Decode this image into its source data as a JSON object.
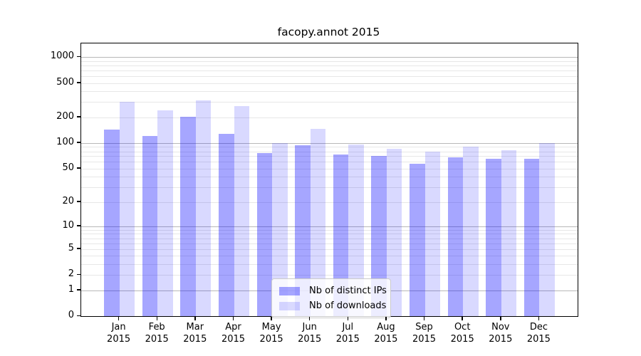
{
  "title": "facopy.annot 2015",
  "legend": {
    "items": [
      {
        "label": "Nb of distinct IPs",
        "color": "rgba(0,0,255,0.35)"
      },
      {
        "label": "Nb of downloads",
        "color": "rgba(0,0,255,0.15)"
      }
    ]
  },
  "colors": {
    "bar_dark": "rgba(0,0,255,0.35)",
    "bar_light": "rgba(0,0,255,0.15)",
    "grid_major": "#b8b8b8",
    "grid_minor": "#e7e7e7",
    "spine": "#000000",
    "legend_border": "#cccccc"
  },
  "chart_data": {
    "type": "bar",
    "title": "facopy.annot 2015",
    "categories": [
      "Jan",
      "Feb",
      "Mar",
      "Apr",
      "May",
      "Jun",
      "Jul",
      "Aug",
      "Sep",
      "Oct",
      "Nov",
      "Dec"
    ],
    "x_year": "2015",
    "series": [
      {
        "name": "Nb of distinct IPs",
        "color": "rgba(0,0,255,0.35)",
        "values": [
          145,
          122,
          204,
          129,
          77,
          95,
          73,
          70,
          57,
          68,
          65,
          66
        ]
      },
      {
        "name": "Nb of downloads",
        "color": "rgba(0,0,255,0.15)",
        "values": [
          305,
          240,
          315,
          268,
          100,
          146,
          96,
          86,
          79,
          90,
          83,
          100
        ]
      }
    ],
    "ylabel": "",
    "xlabel": "",
    "y_scale": "log10(value+1)",
    "y_ticks": [
      1000,
      500,
      200,
      100,
      50,
      20,
      10,
      5,
      2,
      1,
      0
    ],
    "ylim": [
      0,
      1300
    ],
    "grid": {
      "major": [
        1,
        10,
        100,
        1000
      ],
      "minor": [
        2,
        3,
        4,
        5,
        6,
        7,
        8,
        9,
        20,
        30,
        40,
        50,
        60,
        70,
        80,
        90,
        200,
        300,
        400,
        500,
        600,
        700,
        800,
        900
      ]
    },
    "legend_position": "lower-center-inside"
  }
}
